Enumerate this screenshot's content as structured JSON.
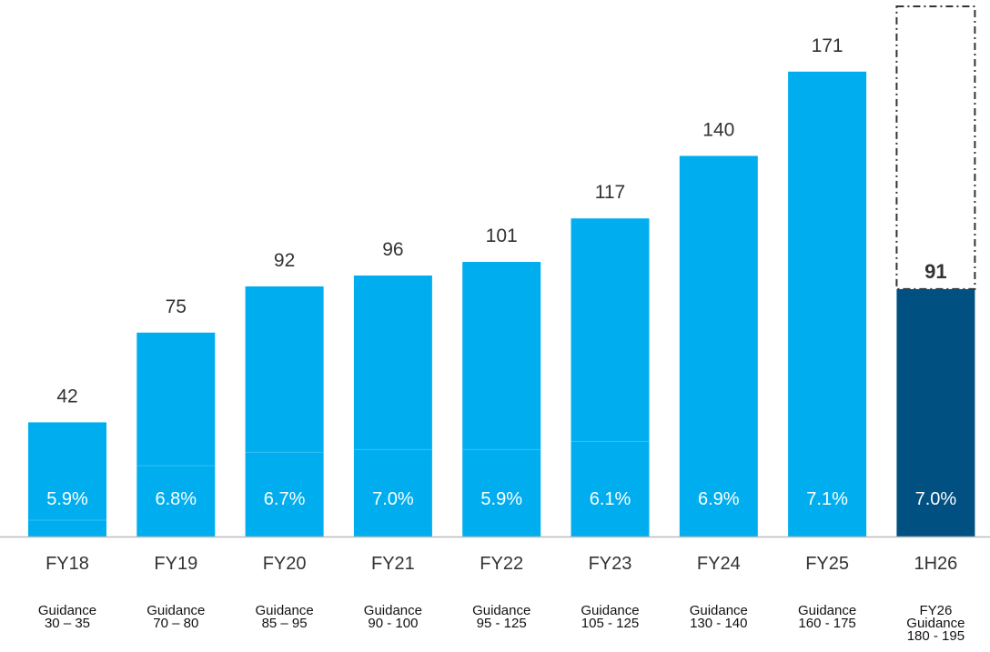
{
  "chart_data": {
    "type": "bar",
    "categories": [
      "FY18",
      "FY19",
      "FY20",
      "FY21",
      "FY22",
      "FY23",
      "FY24",
      "FY25",
      "1H26"
    ],
    "values": [
      42,
      75,
      92,
      96,
      101,
      117,
      140,
      171,
      91
    ],
    "value_labels": [
      "42",
      "75",
      "92",
      "96",
      "101",
      "117",
      "140",
      "171",
      "91"
    ],
    "percent_labels": [
      "5.9%",
      "6.8%",
      "6.7%",
      "7.0%",
      "5.9%",
      "6.1%",
      "6.9%",
      "7.1%",
      "7.0%"
    ],
    "guidance_labels": [
      [
        "Guidance",
        "30 – 35"
      ],
      [
        "Guidance",
        "70 – 80"
      ],
      [
        "Guidance",
        "85 – 95"
      ],
      [
        "Guidance",
        "90 - 100"
      ],
      [
        "Guidance",
        "95 - 125"
      ],
      [
        "Guidance",
        "105 - 125"
      ],
      [
        "Guidance",
        "130 - 140"
      ],
      [
        "Guidance",
        "160 - 175"
      ],
      [
        "FY26",
        "Guidance",
        "180 - 195"
      ]
    ],
    "guidance_ranges": [
      [
        30,
        35
      ],
      [
        70,
        80
      ],
      [
        85,
        95
      ],
      [
        90,
        100
      ],
      [
        95,
        125
      ],
      [
        105,
        125
      ],
      [
        130,
        140
      ],
      [
        160,
        175
      ],
      [
        180,
        195
      ]
    ],
    "segment_splits": [
      6,
      26,
      31,
      32,
      32,
      35,
      null,
      null,
      null
    ],
    "projection_outline_to": 195,
    "ylim": [
      0,
      195
    ],
    "grid": false,
    "legend": "none",
    "colors": {
      "bar": "#00AEEF",
      "bar_highlight": "#005082",
      "outline": "#333333",
      "axis": "#bbbbbb",
      "text": "#333333"
    }
  }
}
